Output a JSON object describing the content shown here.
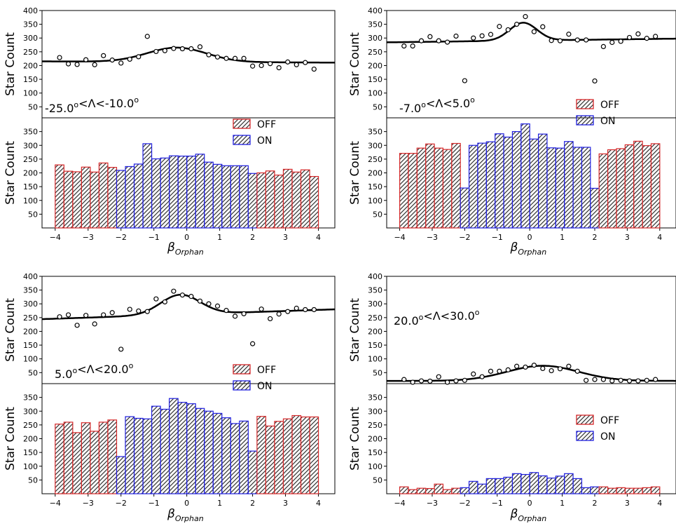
{
  "figure": {
    "xlabel": "β",
    "xlabel_sub": "Orphan",
    "ylabel": "Star Count",
    "legend_off": "OFF",
    "legend_on": "ON",
    "colors": {
      "off_edge": "#d62728",
      "on_edge": "#1f1fe0",
      "hatch": "#333333",
      "curve": "#000000"
    }
  },
  "chart_data": [
    {
      "panel": "top-left",
      "type": "scatter",
      "annotation": "-25.0<Λ<-10.0",
      "xlim": [
        -4.4,
        4.5
      ],
      "top_ylim": [
        10,
        400
      ],
      "bottom_ylim": [
        0,
        400
      ],
      "top_yticks": [
        50,
        100,
        150,
        200,
        250,
        300,
        350,
        400
      ],
      "bottom_yticks": [
        50,
        100,
        150,
        200,
        250,
        300,
        350
      ],
      "xticks": [
        -4,
        -3,
        -2,
        -1,
        0,
        1,
        2,
        3,
        4
      ],
      "legend_placement": "bottom-panel top-center",
      "fit": {
        "baseline": [
          213,
          -0.5
        ],
        "amp": 52,
        "mu": -0.3,
        "sigma": 0.9
      },
      "points": [
        229,
        206,
        204,
        221,
        203,
        236,
        220,
        209,
        223,
        232,
        306,
        251,
        254,
        262,
        261,
        261,
        268,
        239,
        231,
        226,
        226,
        226,
        198,
        200,
        207,
        192,
        213,
        203,
        211,
        187
      ],
      "bars_x0": -4.0,
      "bars_width": 0.2667,
      "bars_on_range": [
        -2.13,
        2.13
      ]
    },
    {
      "panel": "top-right",
      "type": "scatter",
      "annotation": "-7.0<Λ<5.0",
      "xlim": [
        -4.4,
        4.5
      ],
      "top_ylim": [
        10,
        400
      ],
      "bottom_ylim": [
        0,
        400
      ],
      "top_yticks": [
        50,
        100,
        150,
        200,
        250,
        300,
        350,
        400
      ],
      "bottom_yticks": [
        50,
        100,
        150,
        200,
        250,
        300,
        350
      ],
      "xticks": [
        -4,
        -3,
        -2,
        -1,
        0,
        1,
        2,
        3,
        4
      ],
      "legend_placement": "top-panel bottom-right",
      "fit": {
        "baseline": [
          291,
          1.5
        ],
        "amp": 65,
        "mu": -0.2,
        "sigma": 0.42
      },
      "points": [
        271,
        271,
        290,
        305,
        290,
        285,
        307,
        145,
        300,
        308,
        313,
        342,
        330,
        350,
        378,
        323,
        341,
        291,
        290,
        314,
        293,
        293,
        144,
        269,
        284,
        288,
        302,
        315,
        299,
        306
      ],
      "bars_x0": -4.0,
      "bars_width": 0.2667,
      "bars_on_range": [
        -2.13,
        2.13
      ]
    },
    {
      "panel": "bottom-left",
      "type": "scatter",
      "annotation": "5.0<Λ<20.0",
      "xlim": [
        -4.4,
        4.5
      ],
      "top_ylim": [
        10,
        400
      ],
      "bottom_ylim": [
        0,
        400
      ],
      "top_yticks": [
        50,
        100,
        150,
        200,
        250,
        300,
        350,
        400
      ],
      "bottom_yticks": [
        50,
        100,
        150,
        200,
        250,
        300,
        350
      ],
      "xticks": [
        -4,
        -3,
        -2,
        -1,
        0,
        1,
        2,
        3,
        4
      ],
      "legend_placement": "top-panel bottom-right",
      "fit": {
        "baseline": [
          262,
          4
        ],
        "amp": 72,
        "mu": -0.2,
        "sigma": 0.6
      },
      "points": [
        253,
        260,
        222,
        258,
        227,
        260,
        268,
        135,
        280,
        274,
        272,
        318,
        307,
        346,
        332,
        327,
        310,
        300,
        292,
        276,
        255,
        264,
        155,
        281,
        246,
        263,
        272,
        284,
        279,
        279
      ],
      "bars_x0": -4.0,
      "bars_width": 0.2667,
      "bars_on_range": [
        -2.13,
        2.13
      ]
    },
    {
      "panel": "bottom-right",
      "type": "scatter",
      "annotation": "20.0<Λ<30.0",
      "xlim": [
        -4.4,
        4.5
      ],
      "top_ylim": [
        10,
        400
      ],
      "bottom_ylim": [
        0,
        400
      ],
      "top_yticks": [
        50,
        100,
        150,
        200,
        250,
        300,
        350,
        400
      ],
      "bottom_yticks": [
        50,
        100,
        150,
        200,
        250,
        300,
        350
      ],
      "xticks": [
        -4,
        -3,
        -2,
        -1,
        0,
        1,
        2,
        3,
        4
      ],
      "legend_placement": "bottom-panel right",
      "fit": {
        "baseline": [
          20,
          0
        ],
        "amp": 55,
        "mu": 0.4,
        "sigma": 1.1
      },
      "points": [
        25,
        15,
        20,
        19,
        35,
        15,
        20,
        22,
        45,
        35,
        55,
        55,
        60,
        73,
        70,
        77,
        65,
        57,
        64,
        73,
        55,
        22,
        25,
        25,
        20,
        22,
        20,
        20,
        22,
        25
      ],
      "bars_x0": -4.0,
      "bars_width": 0.2667,
      "bars_on_range": [
        -2.13,
        2.13
      ]
    }
  ]
}
